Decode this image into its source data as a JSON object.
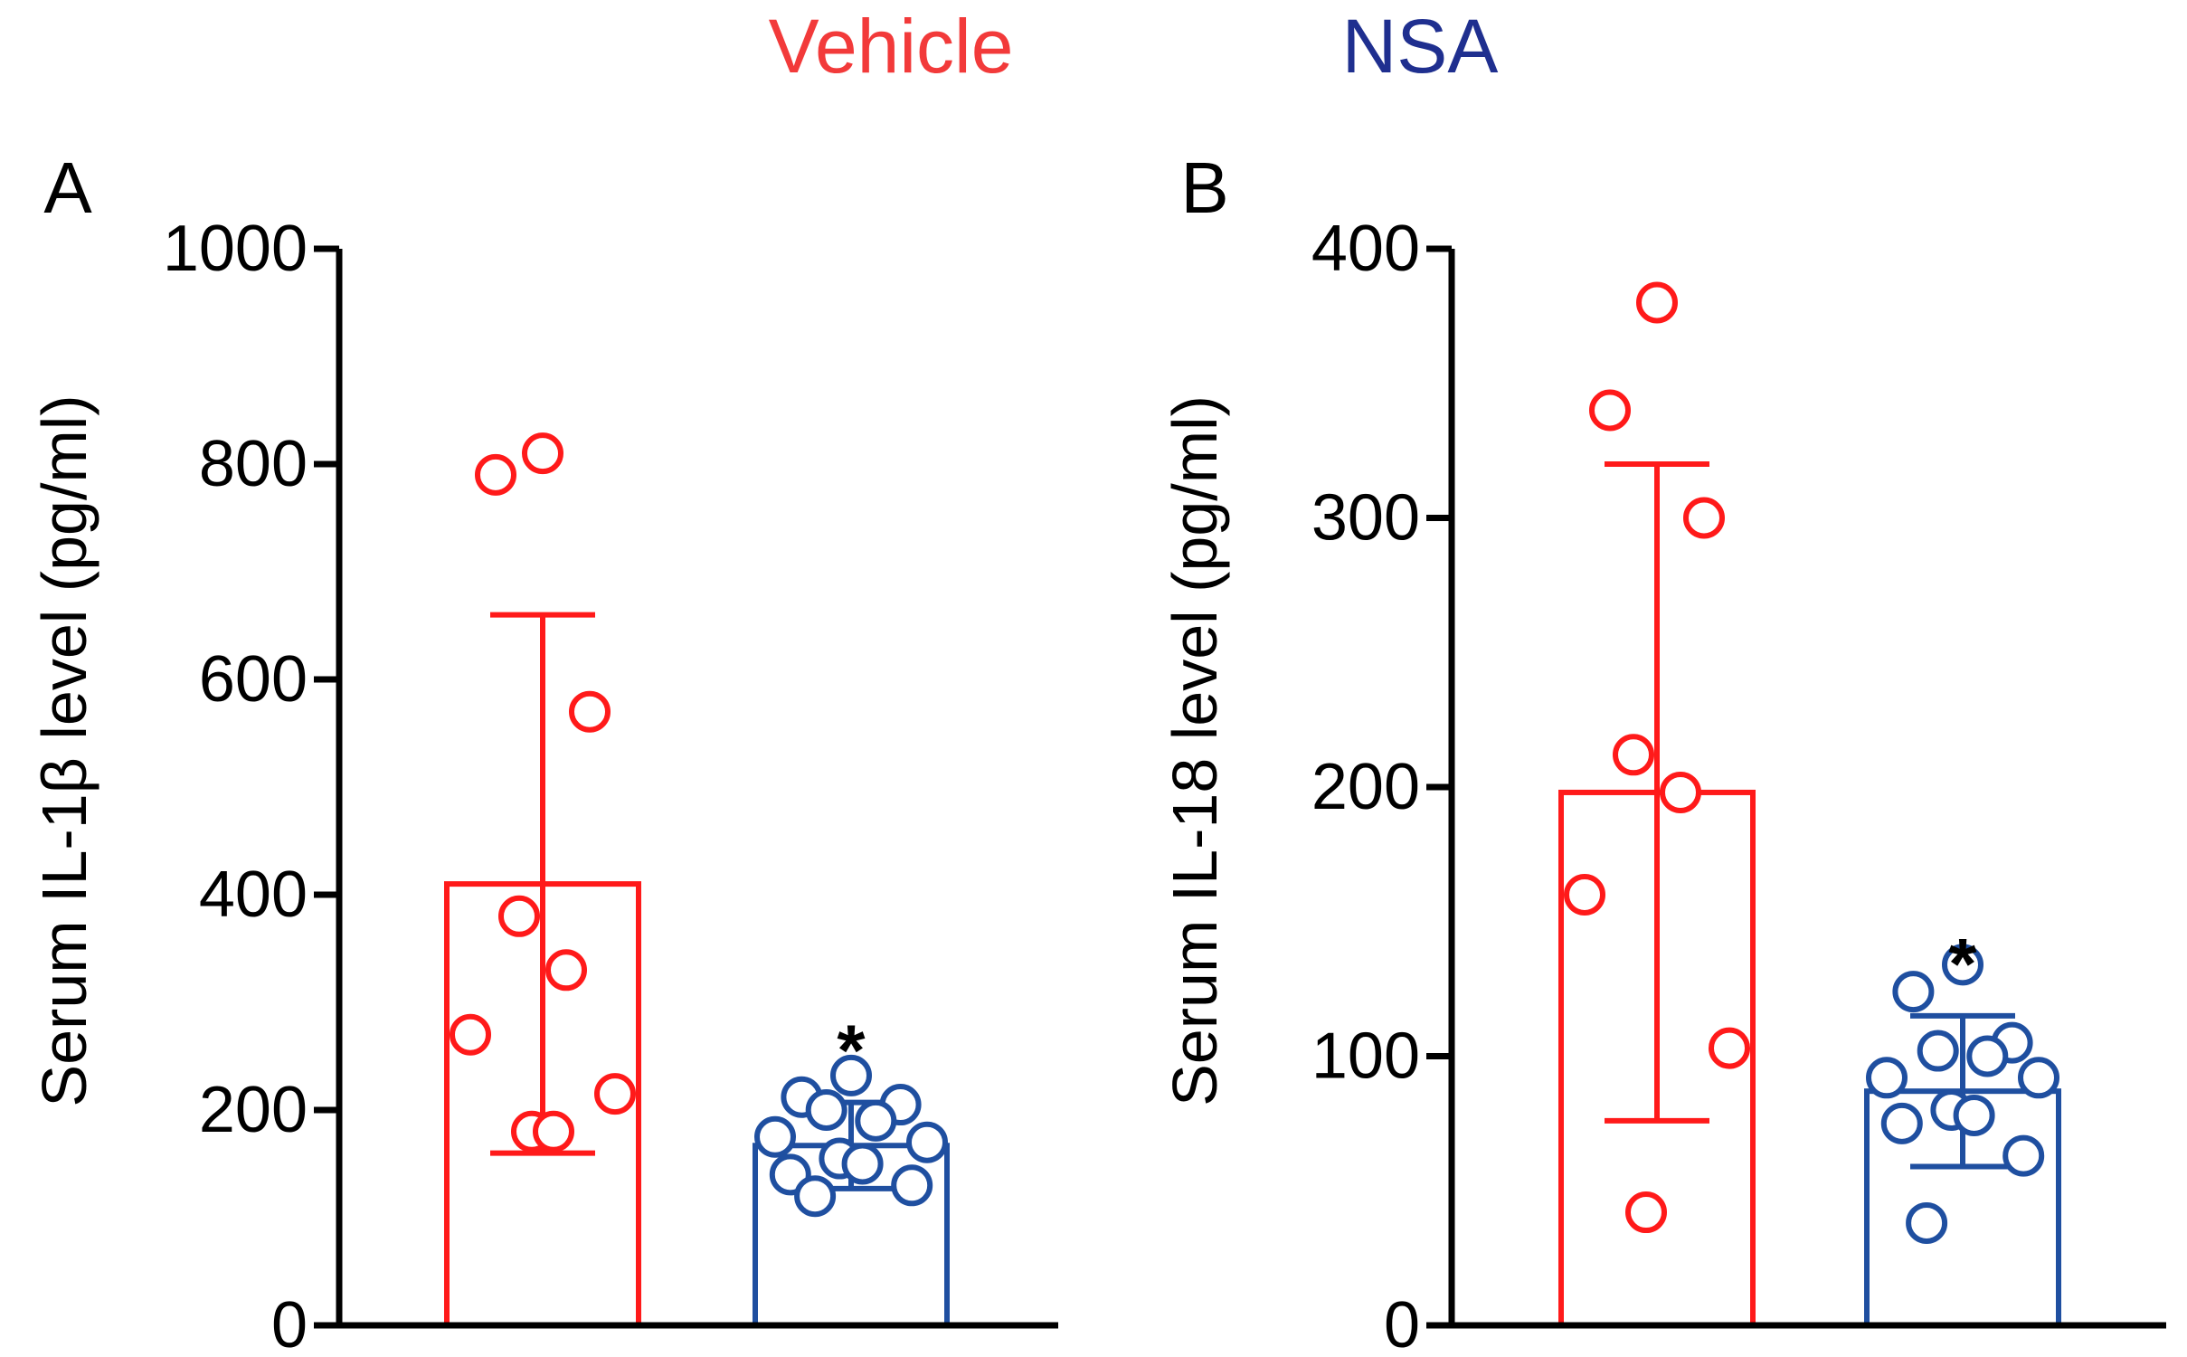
{
  "legend": {
    "entries": [
      {
        "label": "Vehicle",
        "color": "#f23a3a"
      },
      {
        "label": "NSA",
        "color": "#1f2f8f"
      }
    ]
  },
  "chart_data": [
    {
      "type": "bar",
      "panel_label": "A",
      "title": "",
      "xlabel": "",
      "ylabel": "Serum IL-1β level (pg/ml)",
      "ylim": [
        0,
        1000
      ],
      "yticks": [
        0,
        200,
        400,
        600,
        800,
        1000
      ],
      "ytick_labels": [
        "0",
        "200",
        "400",
        "600",
        "800",
        "1000"
      ],
      "categories": [
        "Vehicle",
        "NSA"
      ],
      "series": [
        {
          "name": "Vehicle",
          "color": "#ff1a1a",
          "mean": 410,
          "sd": 250,
          "points": [
            810,
            790,
            570,
            380,
            330,
            270,
            215,
            180,
            180
          ],
          "significance": ""
        },
        {
          "name": "NSA",
          "color": "#1f4fa0",
          "mean": 167,
          "sd": 40,
          "points": [
            232,
            212,
            205,
            200,
            190,
            175,
            170,
            155,
            150,
            140,
            130,
            120
          ],
          "significance": "*"
        }
      ]
    },
    {
      "type": "bar",
      "panel_label": "B",
      "title": "",
      "xlabel": "",
      "ylabel": "Serum IL-18 level (pg/ml)",
      "ylim": [
        0,
        400
      ],
      "yticks": [
        0,
        100,
        200,
        300,
        400
      ],
      "ytick_labels": [
        "0",
        "100",
        "200",
        "300",
        "400"
      ],
      "categories": [
        "Vehicle",
        "NSA"
      ],
      "series": [
        {
          "name": "Vehicle",
          "color": "#ff1a1a",
          "mean": 198,
          "sd": 122,
          "points": [
            380,
            340,
            300,
            212,
            198,
            160,
            103,
            42
          ],
          "significance": ""
        },
        {
          "name": "NSA",
          "color": "#1f4fa0",
          "mean": 87,
          "sd": 28,
          "points": [
            134,
            124,
            105,
            102,
            100,
            92,
            92,
            80,
            78,
            75,
            63,
            38
          ],
          "significance": "*"
        }
      ]
    }
  ]
}
